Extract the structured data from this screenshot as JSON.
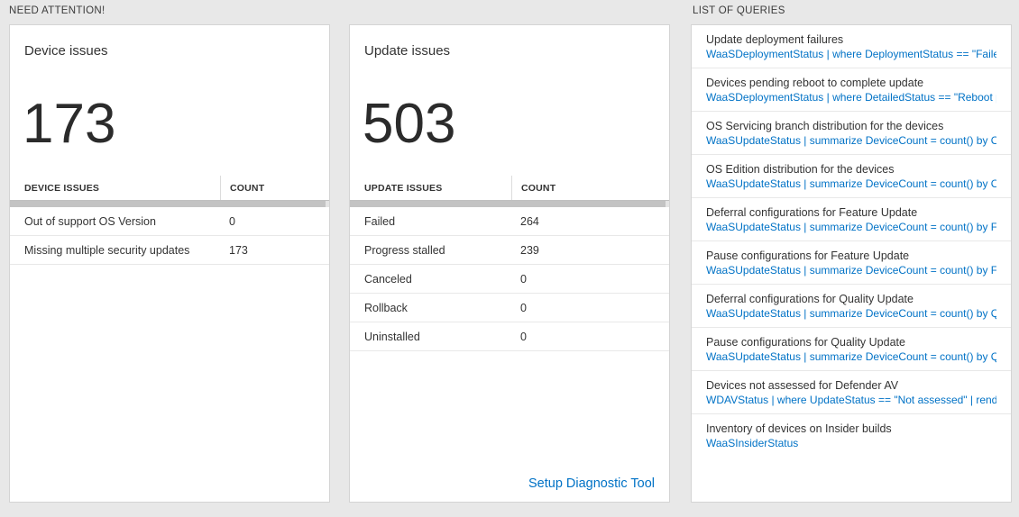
{
  "sections": {
    "need_attention": "NEED ATTENTION!",
    "list_of_queries": "LIST OF QUERIES"
  },
  "colors": {
    "link_blue": "#0072c6",
    "page_bg": "#e8e8e8",
    "card_bg": "#ffffff"
  },
  "device_card": {
    "title": "Device issues",
    "big_number": "173",
    "table": {
      "headers": [
        "DEVICE ISSUES",
        "COUNT"
      ],
      "rows": [
        {
          "label": "Out of support OS Version",
          "count": "0"
        },
        {
          "label": "Missing multiple security updates",
          "count": "173"
        }
      ]
    }
  },
  "update_card": {
    "title": "Update issues",
    "big_number": "503",
    "table": {
      "headers": [
        "UPDATE ISSUES",
        "COUNT"
      ],
      "rows": [
        {
          "label": "Failed",
          "count": "264"
        },
        {
          "label": "Progress stalled",
          "count": "239"
        },
        {
          "label": "Canceled",
          "count": "0"
        },
        {
          "label": "Rollback",
          "count": "0"
        },
        {
          "label": "Uninstalled",
          "count": "0"
        }
      ]
    },
    "footer_link": "Setup Diagnostic Tool"
  },
  "queries": {
    "items": [
      {
        "title": "Update deployment failures",
        "query": "WaaSDeploymentStatus | where DeploymentStatus == \"Failed\" |..."
      },
      {
        "title": "Devices pending reboot to complete update",
        "query": "WaaSDeploymentStatus | where DetailedStatus == \"Reboot pend..."
      },
      {
        "title": "OS Servicing branch distribution for the devices",
        "query": "WaaSUpdateStatus | summarize DeviceCount = count() by OSSer..."
      },
      {
        "title": "OS Edition distribution for the devices",
        "query": "WaaSUpdateStatus | summarize DeviceCount = count() by OSEdit..."
      },
      {
        "title": "Deferral configurations for Feature Update",
        "query": "WaaSUpdateStatus | summarize DeviceCount = count() by Featur..."
      },
      {
        "title": "Pause configurations for Feature Update",
        "query": "WaaSUpdateStatus | summarize DeviceCount = count() by Featur..."
      },
      {
        "title": "Deferral configurations for Quality Update",
        "query": "WaaSUpdateStatus | summarize DeviceCount = count() by Qualit..."
      },
      {
        "title": "Pause configurations for Quality Update",
        "query": "WaaSUpdateStatus | summarize DeviceCount = count() by Qualit..."
      },
      {
        "title": "Devices not assessed for Defender AV",
        "query": "WDAVStatus | where UpdateStatus == \"Not assessed\" | render ta..."
      },
      {
        "title": "Inventory of devices on Insider builds",
        "query": "WaaSInsiderStatus"
      }
    ]
  }
}
